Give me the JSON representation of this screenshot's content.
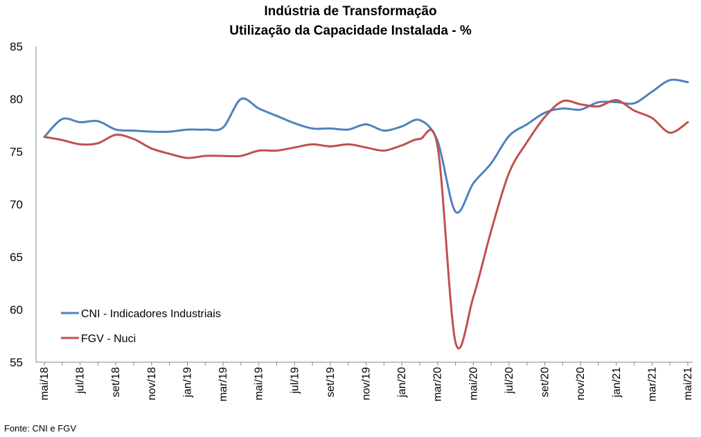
{
  "chart_data": {
    "type": "line",
    "title": "Indústria de Transformação",
    "subtitle": "Utilização da Capacidade Instalada - %",
    "ylim": [
      55,
      85
    ],
    "yticks": [
      55,
      60,
      65,
      70,
      75,
      80,
      85
    ],
    "categories": [
      "mai/18",
      "jun/18",
      "jul/18",
      "ago/18",
      "set/18",
      "out/18",
      "nov/18",
      "dez/18",
      "jan/19",
      "fev/19",
      "mar/19",
      "abr/19",
      "mai/19",
      "jun/19",
      "jul/19",
      "ago/19",
      "set/19",
      "out/19",
      "nov/19",
      "dez/19",
      "jan/20",
      "fev/20",
      "mar/20",
      "abr/20",
      "mai/20",
      "jun/20",
      "jul/20",
      "ago/20",
      "set/20",
      "out/20",
      "nov/20",
      "dez/20",
      "jan/21",
      "fev/21",
      "mar/21",
      "abr/21",
      "mai/21"
    ],
    "tick_labels": [
      "mai/18",
      "jul/18",
      "set/18",
      "nov/18",
      "jan/19",
      "mar/19",
      "mai/19",
      "jul/19",
      "set/19",
      "nov/19",
      "jan/20",
      "mar/20",
      "mai/20",
      "jul/20",
      "set/20",
      "nov/20",
      "jan/21",
      "mar/21",
      "mai/21"
    ],
    "grid": false,
    "legend_position": "lower-left",
    "series": [
      {
        "name": "CNI - Indicadores Industriais",
        "color": "#4F81BD",
        "values": [
          76.4,
          78.1,
          77.8,
          77.9,
          77.1,
          77.0,
          76.9,
          76.9,
          77.1,
          77.1,
          77.3,
          80.0,
          79.1,
          78.4,
          77.7,
          77.2,
          77.2,
          77.1,
          77.6,
          77.0,
          77.4,
          78.0,
          76.0,
          69.3,
          72.0,
          73.9,
          76.5,
          77.6,
          78.7,
          79.1,
          79.0,
          79.7,
          79.7,
          79.6,
          80.7,
          81.8,
          81.6
        ]
      },
      {
        "name": "FGV - Nuci",
        "color": "#C0504D",
        "values": [
          76.4,
          76.1,
          75.7,
          75.8,
          76.6,
          76.2,
          75.3,
          74.8,
          74.4,
          74.6,
          74.6,
          74.6,
          75.1,
          75.1,
          75.4,
          75.7,
          75.5,
          75.7,
          75.4,
          75.1,
          75.6,
          76.2,
          75.5,
          56.9,
          61.2,
          67.5,
          73.0,
          75.9,
          78.3,
          79.8,
          79.5,
          79.3,
          79.9,
          78.9,
          78.2,
          76.8,
          77.8
        ]
      }
    ]
  },
  "source": "Fonte: CNI e FGV"
}
